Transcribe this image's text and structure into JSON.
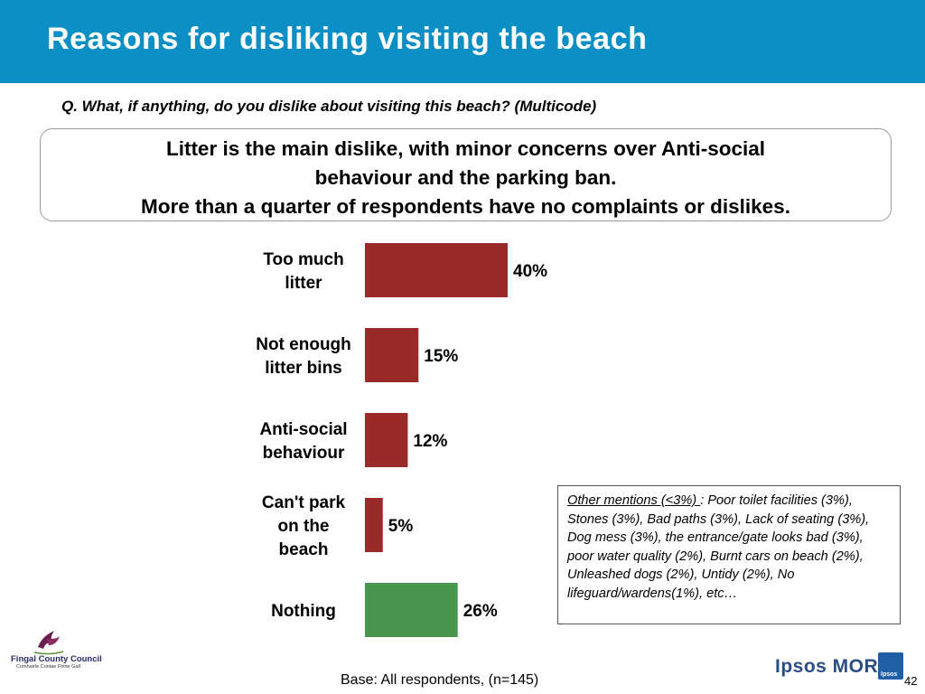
{
  "header": {
    "title": "Reasons for disliking visiting the beach",
    "question": "Q. What, if anything, do you dislike about visiting this beach? (Multicode)"
  },
  "summary": {
    "line1": "Litter is the main dislike, with minor concerns over Anti-social",
    "line2": "behaviour and the parking ban.",
    "line3": "More than a quarter of respondents have no complaints or dislikes."
  },
  "chart_data": {
    "type": "bar",
    "orientation": "horizontal",
    "categories": [
      [
        "Too much",
        "litter"
      ],
      [
        "Not enough",
        "litter bins"
      ],
      [
        "Anti-social",
        "behaviour"
      ],
      [
        "Can't park",
        "on the",
        "beach"
      ],
      [
        "Nothing"
      ]
    ],
    "values": [
      40,
      15,
      12,
      5,
      26
    ],
    "value_labels": [
      "40%",
      "15%",
      "12%",
      "5%",
      "26%"
    ],
    "colors": [
      "#9a2a2a",
      "#9a2a2a",
      "#9a2a2a",
      "#9a2a2a",
      "#46964f"
    ],
    "xlim": [
      0,
      100
    ],
    "grid": false,
    "legend": "none"
  },
  "other_mentions": {
    "heading": "Other mentions (<3%) ",
    "text": ": Poor toilet facilities (3%), Stones (3%), Bad paths (3%), Lack of seating (3%), Dog mess (3%), the entrance/gate looks bad (3%), poor water quality (2%), Burnt cars on beach (2%), Unleashed dogs (2%), Untidy (2%), No lifeguard/wardens(1%), etc…"
  },
  "footer": {
    "base": "Base: All respondents, (n=145)",
    "page": "42",
    "council_name": "Fingal County Council",
    "council_sub": "Comhairle Contae Fhine Gall",
    "ipsos_logo": "Ipsos MORI",
    "ipsos_tile": "Ipsos"
  },
  "colors": {
    "title_bar": "#0c8fc4",
    "bar_main": "#9a2a2a",
    "bar_nothing": "#46964f"
  }
}
